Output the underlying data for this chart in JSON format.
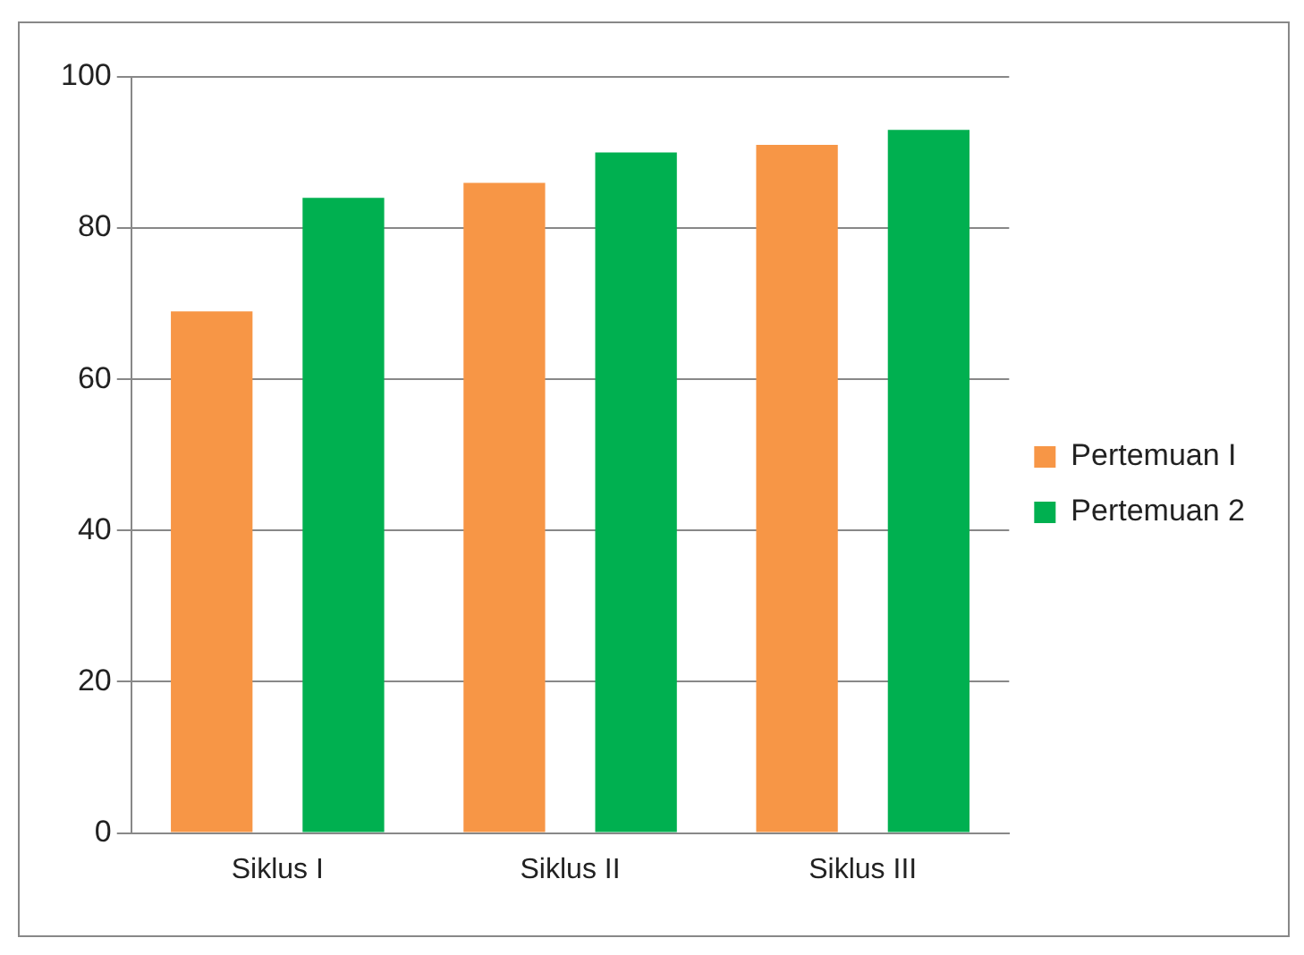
{
  "chart_data": {
    "type": "bar",
    "categories": [
      "Siklus I",
      "Siklus II",
      "Siklus III"
    ],
    "series": [
      {
        "name": "Pertemuan I",
        "color": "#f79646",
        "values": [
          69,
          86,
          91
        ]
      },
      {
        "name": "Pertemuan 2",
        "color": "#00b050",
        "values": [
          84,
          90,
          93
        ]
      }
    ],
    "ylim": [
      0,
      100
    ],
    "yticks": [
      0,
      20,
      40,
      60,
      80,
      100
    ],
    "grid": "y",
    "legend": "right"
  }
}
